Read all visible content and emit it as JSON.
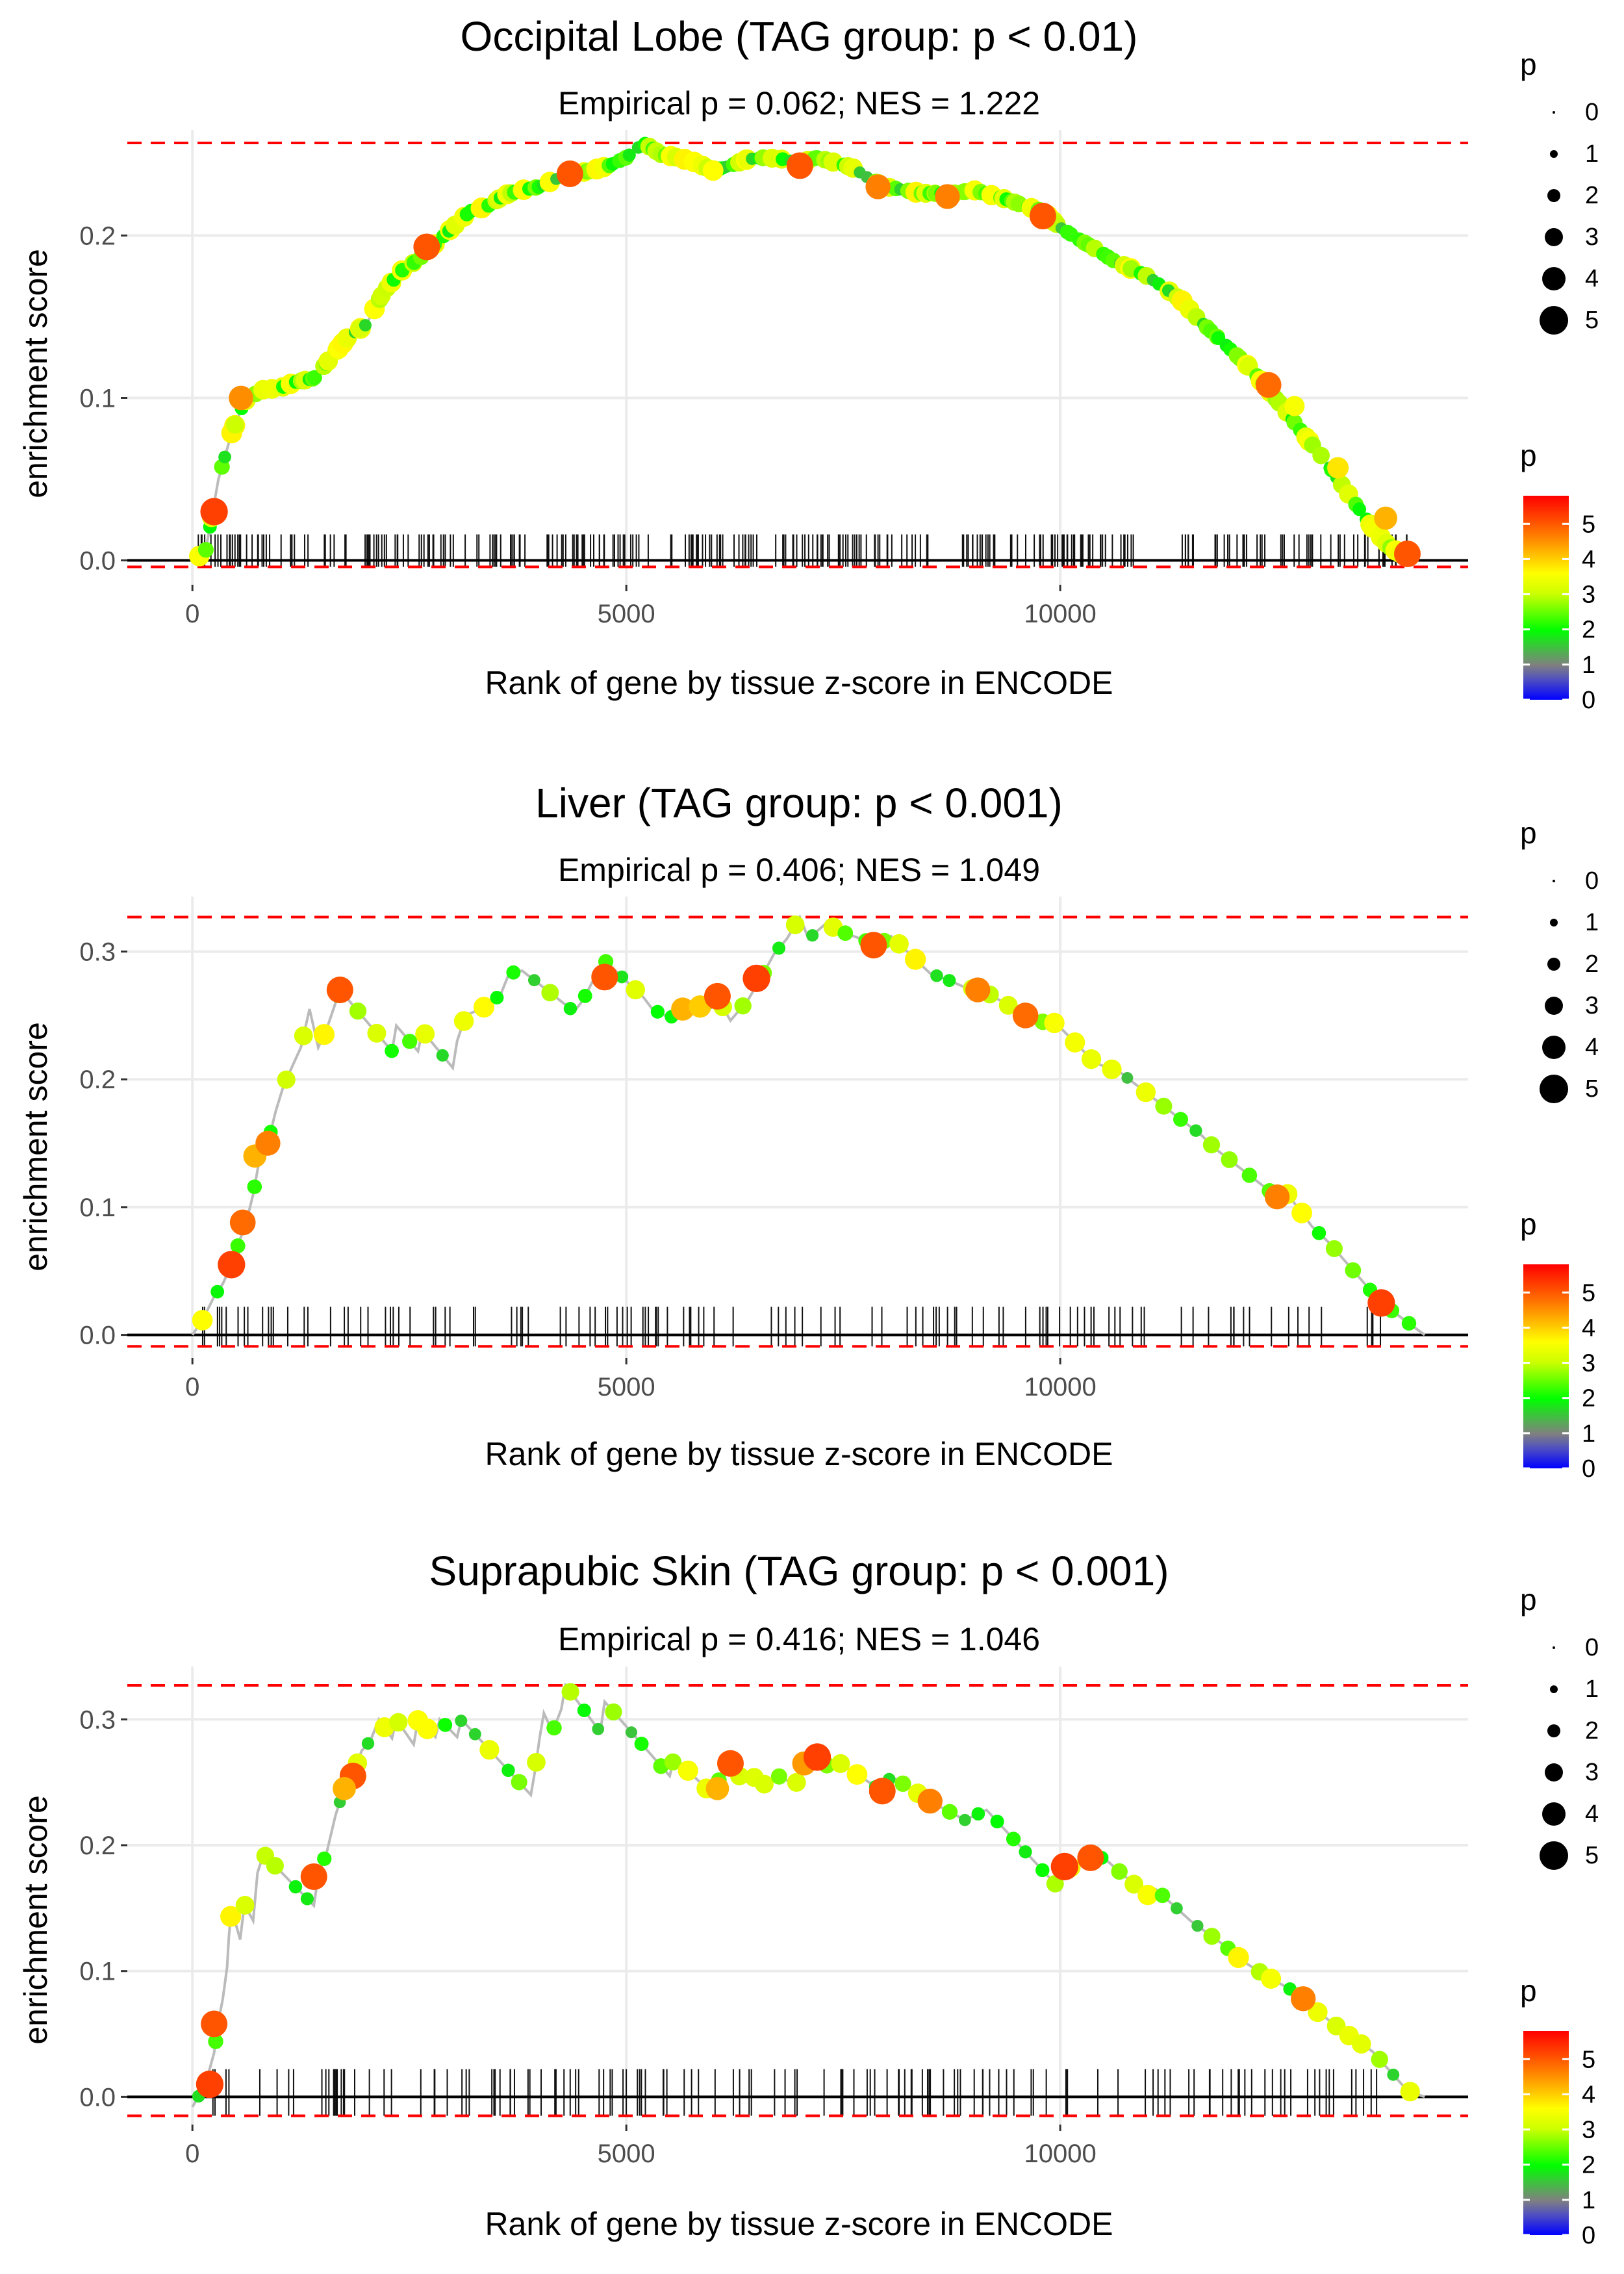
{
  "chart_data": [
    {
      "type": "line",
      "title": "Occipital Lobe (TAG group: p < 0.01)",
      "subtitle": "Empirical p = 0.062; NES = 1.222",
      "xlabel": "Rank of gene by tissue z-score in ENCODE",
      "ylabel": "enrichment score",
      "xlim": [
        -750,
        14700
      ],
      "ylim": [
        -0.015,
        0.265
      ],
      "x_ticks": [
        0,
        5000,
        10000
      ],
      "x_tick_labels": [
        "0",
        "5000",
        "10000"
      ],
      "y_ticks": [
        0.0,
        0.1,
        0.2
      ],
      "y_tick_labels": [
        "0.0",
        "0.1",
        "0.2"
      ],
      "max_es": 0.257,
      "min_es": -0.004,
      "curve": [
        [
          0,
          0.0
        ],
        [
          150,
          0.005
        ],
        [
          300,
          0.05
        ],
        [
          450,
          0.078
        ],
        [
          600,
          0.098
        ],
        [
          800,
          0.105
        ],
        [
          1000,
          0.106
        ],
        [
          1200,
          0.11
        ],
        [
          1400,
          0.112
        ],
        [
          1600,
          0.125
        ],
        [
          1800,
          0.138
        ],
        [
          2000,
          0.145
        ],
        [
          2200,
          0.165
        ],
        [
          2400,
          0.178
        ],
        [
          2600,
          0.185
        ],
        [
          2800,
          0.195
        ],
        [
          3000,
          0.205
        ],
        [
          3200,
          0.215
        ],
        [
          3400,
          0.218
        ],
        [
          3600,
          0.225
        ],
        [
          3800,
          0.228
        ],
        [
          4000,
          0.23
        ],
        [
          4200,
          0.235
        ],
        [
          4400,
          0.238
        ],
        [
          4600,
          0.24
        ],
        [
          4800,
          0.243
        ],
        [
          5000,
          0.248
        ],
        [
          5200,
          0.257
        ],
        [
          5400,
          0.25
        ],
        [
          5600,
          0.248
        ],
        [
          5800,
          0.245
        ],
        [
          6000,
          0.24
        ],
        [
          6200,
          0.243
        ],
        [
          6400,
          0.247
        ],
        [
          6600,
          0.248
        ],
        [
          6800,
          0.247
        ],
        [
          7000,
          0.245
        ],
        [
          7200,
          0.248
        ],
        [
          7400,
          0.245
        ],
        [
          7600,
          0.242
        ],
        [
          7800,
          0.235
        ],
        [
          8000,
          0.23
        ],
        [
          8200,
          0.228
        ],
        [
          8400,
          0.226
        ],
        [
          8600,
          0.226
        ],
        [
          8800,
          0.226
        ],
        [
          9000,
          0.228
        ],
        [
          9200,
          0.225
        ],
        [
          9400,
          0.222
        ],
        [
          9600,
          0.218
        ],
        [
          9800,
          0.215
        ],
        [
          10000,
          0.205
        ],
        [
          10200,
          0.198
        ],
        [
          10400,
          0.192
        ],
        [
          10600,
          0.185
        ],
        [
          10800,
          0.18
        ],
        [
          11000,
          0.175
        ],
        [
          11200,
          0.168
        ],
        [
          11400,
          0.16
        ],
        [
          11600,
          0.148
        ],
        [
          11800,
          0.138
        ],
        [
          12000,
          0.128
        ],
        [
          12200,
          0.118
        ],
        [
          12400,
          0.105
        ],
        [
          12600,
          0.092
        ],
        [
          12800,
          0.078
        ],
        [
          13000,
          0.065
        ],
        [
          13200,
          0.05
        ],
        [
          13400,
          0.035
        ],
        [
          13600,
          0.02
        ],
        [
          13800,
          0.008
        ],
        [
          14000,
          0.002
        ]
      ],
      "highlight_points": [
        [
          250,
          0.03,
          5.2
        ],
        [
          560,
          0.1,
          4.5
        ],
        [
          2700,
          0.193,
          5.0
        ],
        [
          4350,
          0.238,
          5.0
        ],
        [
          6000,
          0.24,
          3.6
        ],
        [
          7000,
          0.243,
          5.0
        ],
        [
          7900,
          0.23,
          4.6
        ],
        [
          8700,
          0.224,
          4.6
        ],
        [
          9800,
          0.212,
          5.0
        ],
        [
          12400,
          0.108,
          4.8
        ],
        [
          12700,
          0.095,
          3.5
        ],
        [
          13200,
          0.057,
          3.8
        ],
        [
          13750,
          0.026,
          4.2
        ],
        [
          14000,
          0.004,
          5.0
        ]
      ],
      "n_ticks": 300,
      "tick_range": [
        0,
        14000
      ],
      "rug_bottom_y": -0.004,
      "rug_top_y": 0.016,
      "point_count": 260
    },
    {
      "type": "line",
      "title": "Liver (TAG group: p < 0.001)",
      "subtitle": "Empirical p = 0.406; NES = 1.049",
      "xlabel": "Rank of gene by tissue z-score in ENCODE",
      "ylabel": "enrichment score",
      "xlim": [
        -750,
        14700
      ],
      "ylim": [
        -0.018,
        0.343
      ],
      "x_ticks": [
        0,
        5000,
        10000
      ],
      "x_tick_labels": [
        "0",
        "5000",
        "10000"
      ],
      "y_ticks": [
        0.0,
        0.1,
        0.2,
        0.3
      ],
      "y_tick_labels": [
        "0.0",
        "0.1",
        "0.2",
        "0.3"
      ],
      "max_es": 0.327,
      "min_es": -0.009,
      "curve": [
        [
          0,
          0.0
        ],
        [
          120,
          0.012
        ],
        [
          250,
          0.03
        ],
        [
          350,
          0.04
        ],
        [
          450,
          0.055
        ],
        [
          550,
          0.075
        ],
        [
          620,
          0.088
        ],
        [
          700,
          0.11
        ],
        [
          780,
          0.14
        ],
        [
          870,
          0.15
        ],
        [
          960,
          0.175
        ],
        [
          1050,
          0.195
        ],
        [
          1150,
          0.21
        ],
        [
          1250,
          0.225
        ],
        [
          1350,
          0.255
        ],
        [
          1450,
          0.225
        ],
        [
          1550,
          0.24
        ],
        [
          1700,
          0.27
        ],
        [
          2300,
          0.222
        ],
        [
          2350,
          0.242
        ],
        [
          2600,
          0.222
        ],
        [
          2650,
          0.238
        ],
        [
          3000,
          0.209
        ],
        [
          3050,
          0.23
        ],
        [
          3150,
          0.25
        ],
        [
          3350,
          0.256
        ],
        [
          3550,
          0.266
        ],
        [
          3650,
          0.283
        ],
        [
          3800,
          0.285
        ],
        [
          4400,
          0.253
        ],
        [
          4500,
          0.262
        ],
        [
          4600,
          0.275
        ],
        [
          4750,
          0.293
        ],
        [
          5200,
          0.264
        ],
        [
          5300,
          0.255
        ],
        [
          5500,
          0.248
        ],
        [
          5650,
          0.255
        ],
        [
          5850,
          0.255
        ],
        [
          6050,
          0.264
        ],
        [
          6200,
          0.246
        ],
        [
          6400,
          0.262
        ],
        [
          6550,
          0.279
        ],
        [
          6700,
          0.298
        ],
        [
          6850,
          0.31
        ],
        [
          7000,
          0.327
        ],
        [
          7100,
          0.31
        ],
        [
          7300,
          0.322
        ],
        [
          7500,
          0.315
        ],
        [
          7700,
          0.31
        ],
        [
          7900,
          0.305
        ],
        [
          8050,
          0.312
        ],
        [
          8500,
          0.283
        ],
        [
          8700,
          0.278
        ],
        [
          8900,
          0.272
        ],
        [
          9100,
          0.27
        ],
        [
          9600,
          0.25
        ],
        [
          9800,
          0.245
        ],
        [
          9950,
          0.244
        ],
        [
          10400,
          0.213
        ],
        [
          10700,
          0.205
        ],
        [
          11400,
          0.168
        ],
        [
          11600,
          0.158
        ],
        [
          11800,
          0.145
        ],
        [
          12500,
          0.108
        ],
        [
          12600,
          0.112
        ],
        [
          12900,
          0.085
        ],
        [
          13100,
          0.072
        ],
        [
          13700,
          0.025
        ],
        [
          14200,
          0.0
        ]
      ],
      "highlight_points": [
        [
          450,
          0.055,
          5.2
        ],
        [
          580,
          0.088,
          4.8
        ],
        [
          720,
          0.14,
          4.2
        ],
        [
          870,
          0.15,
          4.6
        ],
        [
          1700,
          0.27,
          5.0
        ],
        [
          4750,
          0.28,
          5.0
        ],
        [
          5650,
          0.255,
          4.2
        ],
        [
          5850,
          0.257,
          4.0
        ],
        [
          6050,
          0.265,
          5.0
        ],
        [
          6500,
          0.279,
          5.2
        ],
        [
          7850,
          0.305,
          5.0
        ],
        [
          9050,
          0.27,
          4.6
        ],
        [
          9600,
          0.25,
          4.8
        ],
        [
          12500,
          0.108,
          4.6
        ],
        [
          13700,
          0.025,
          5.2
        ]
      ],
      "n_ticks": 120,
      "tick_range": [
        100,
        13700
      ],
      "rug_bottom_y": -0.009,
      "rug_top_y": 0.022,
      "point_count": 70
    },
    {
      "type": "line",
      "title": "Suprapubic Skin (TAG group: p < 0.001)",
      "subtitle": "Empirical p = 0.416; NES = 1.046",
      "xlabel": "Rank of gene by tissue z-score in ENCODE",
      "ylabel": "enrichment score",
      "xlim": [
        -750,
        14700
      ],
      "ylim": [
        -0.022,
        0.342
      ],
      "x_ticks": [
        0,
        5000,
        10000
      ],
      "x_tick_labels": [
        "0",
        "5000",
        "10000"
      ],
      "y_ticks": [
        0.0,
        0.1,
        0.2,
        0.3
      ],
      "y_tick_labels": [
        "0.0",
        "0.1",
        "0.2",
        "0.3"
      ],
      "max_es": 0.327,
      "min_es": -0.015,
      "curve": [
        [
          0,
          -0.008
        ],
        [
          150,
          0.01
        ],
        [
          250,
          0.035
        ],
        [
          300,
          0.06
        ],
        [
          350,
          0.078
        ],
        [
          400,
          0.103
        ],
        [
          420,
          0.127
        ],
        [
          450,
          0.15
        ],
        [
          550,
          0.125
        ],
        [
          600,
          0.153
        ],
        [
          700,
          0.14
        ],
        [
          750,
          0.178
        ],
        [
          820,
          0.193
        ],
        [
          1400,
          0.152
        ],
        [
          1450,
          0.176
        ],
        [
          1550,
          0.195
        ],
        [
          1650,
          0.224
        ],
        [
          1750,
          0.245
        ],
        [
          1850,
          0.255
        ],
        [
          1950,
          0.275
        ],
        [
          2050,
          0.283
        ],
        [
          2150,
          0.3
        ],
        [
          2300,
          0.285
        ],
        [
          2350,
          0.3
        ],
        [
          2550,
          0.28
        ],
        [
          2600,
          0.3
        ],
        [
          2800,
          0.286
        ],
        [
          2850,
          0.3
        ],
        [
          3050,
          0.286
        ],
        [
          3100,
          0.3
        ],
        [
          3900,
          0.24
        ],
        [
          3950,
          0.26
        ],
        [
          4000,
          0.285
        ],
        [
          4050,
          0.305
        ],
        [
          4150,
          0.29
        ],
        [
          4250,
          0.308
        ],
        [
          4300,
          0.327
        ],
        [
          4700,
          0.29
        ],
        [
          4750,
          0.314
        ],
        [
          5500,
          0.255
        ],
        [
          5550,
          0.27
        ],
        [
          6000,
          0.24
        ],
        [
          6050,
          0.25
        ],
        [
          6150,
          0.26
        ],
        [
          6300,
          0.255
        ],
        [
          6450,
          0.255
        ],
        [
          6600,
          0.248
        ],
        [
          6750,
          0.255
        ],
        [
          6950,
          0.248
        ],
        [
          7050,
          0.265
        ],
        [
          7150,
          0.27
        ],
        [
          7350,
          0.262
        ],
        [
          7400,
          0.268
        ],
        [
          7950,
          0.243
        ],
        [
          8050,
          0.255
        ],
        [
          8500,
          0.235
        ],
        [
          8900,
          0.22
        ],
        [
          9150,
          0.228
        ],
        [
          10000,
          0.165
        ],
        [
          10050,
          0.18
        ],
        [
          10200,
          0.185
        ],
        [
          10350,
          0.19
        ],
        [
          10500,
          0.19
        ],
        [
          11000,
          0.16
        ],
        [
          11100,
          0.165
        ],
        [
          11500,
          0.14
        ],
        [
          11700,
          0.13
        ],
        [
          11900,
          0.12
        ],
        [
          12100,
          0.108
        ],
        [
          12400,
          0.095
        ],
        [
          12800,
          0.08
        ],
        [
          12900,
          0.07
        ],
        [
          13000,
          0.066
        ],
        [
          13300,
          0.05
        ],
        [
          13600,
          0.036
        ],
        [
          14000,
          0.005
        ],
        [
          14200,
          0.0
        ]
      ],
      "highlight_points": [
        [
          200,
          0.01,
          5.2
        ],
        [
          250,
          0.058,
          5.0
        ],
        [
          1400,
          0.175,
          5.0
        ],
        [
          1850,
          0.255,
          5.0
        ],
        [
          1750,
          0.245,
          4.2
        ],
        [
          6050,
          0.245,
          4.2
        ],
        [
          6200,
          0.265,
          5.0
        ],
        [
          7050,
          0.265,
          4.4
        ],
        [
          7200,
          0.27,
          5.2
        ],
        [
          7950,
          0.243,
          5.0
        ],
        [
          8500,
          0.235,
          4.6
        ],
        [
          10050,
          0.183,
          5.2
        ],
        [
          10350,
          0.19,
          5.0
        ],
        [
          12800,
          0.078,
          4.6
        ]
      ],
      "n_ticks": 140,
      "tick_range": [
        150,
        13700
      ],
      "rug_bottom_y": -0.015,
      "rug_top_y": 0.022,
      "point_count": 80
    }
  ],
  "legend": {
    "size_title": "p",
    "size_labels": [
      "0",
      "1",
      "2",
      "3",
      "4",
      "5"
    ],
    "color_title": "p",
    "color_labels": [
      "0",
      "1",
      "2",
      "3",
      "4",
      "5"
    ],
    "color_stops": [
      "#0000ff",
      "#808080",
      "#00ff00",
      "#ffff00",
      "#ff8000",
      "#ff0000"
    ],
    "color_max": 5.8
  },
  "colors": {
    "line": "#bbbbbb",
    "dashed": "#ff0000",
    "grid": "#ebebeb",
    "axis_text": "#4d4d4d"
  }
}
